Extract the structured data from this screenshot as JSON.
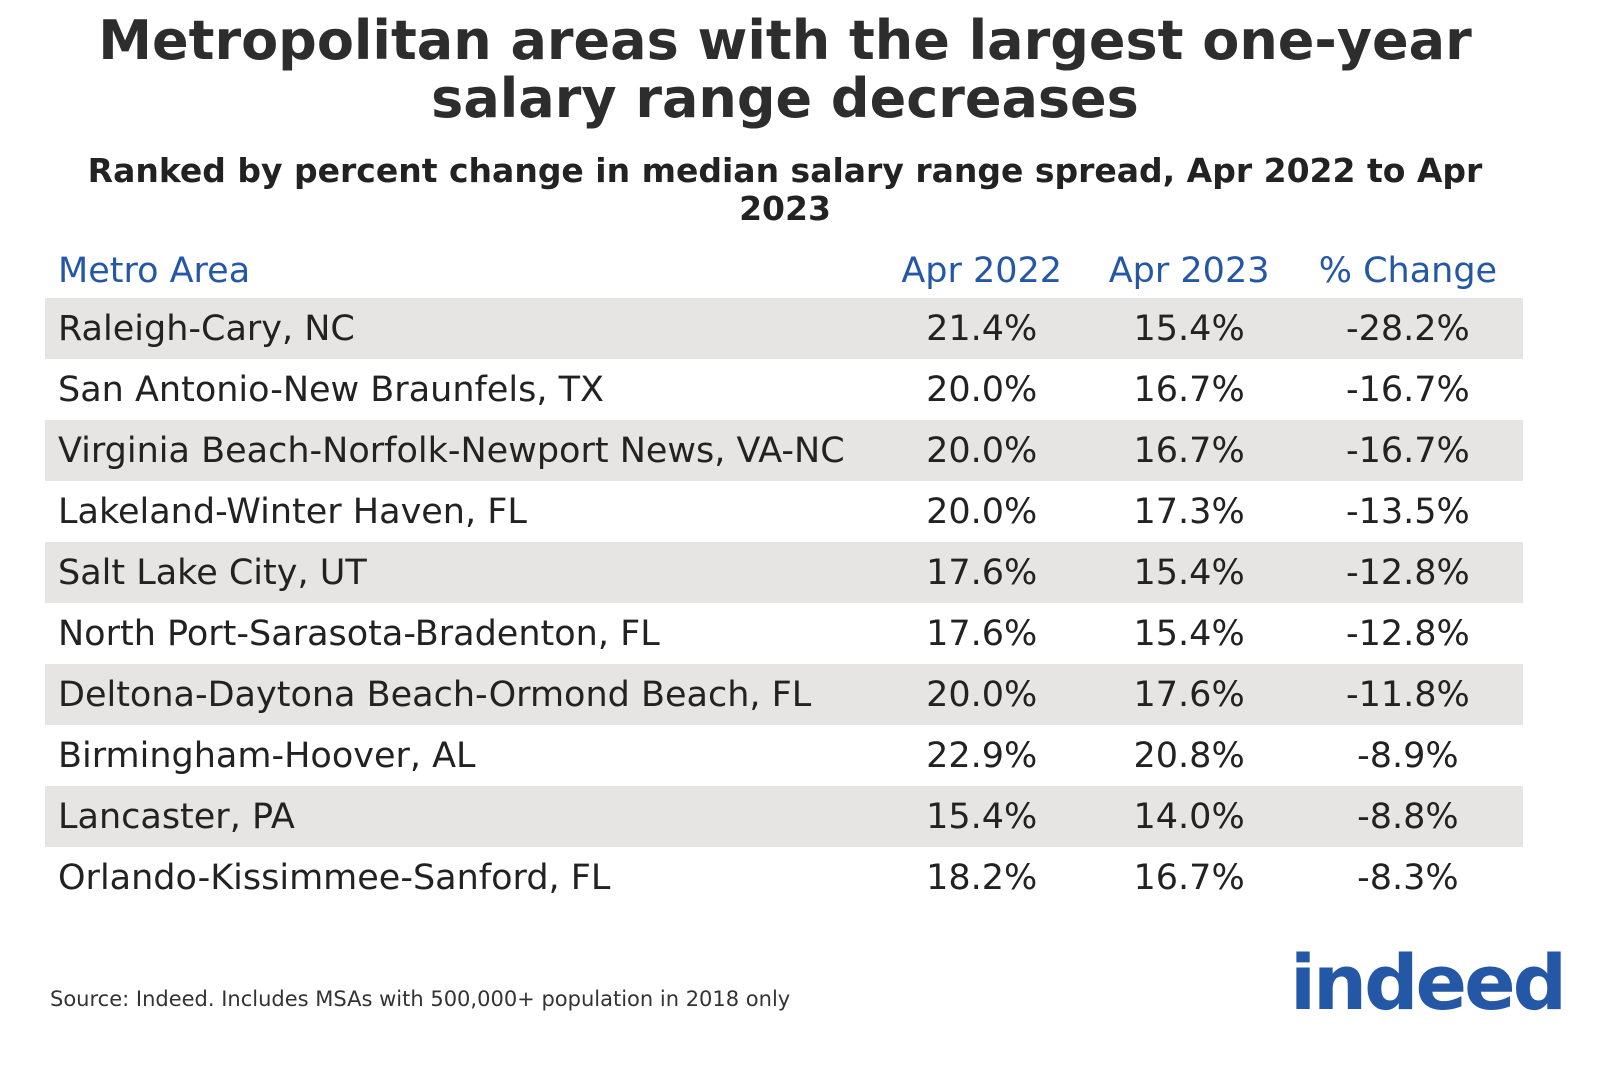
{
  "header": {
    "title": "Metropolitan areas with the largest one-year salary range decreases",
    "subtitle": "Ranked by percent change in median salary range spread, Apr 2022 to Apr 2023"
  },
  "table": {
    "columns": [
      "Metro Area",
      "Apr 2022",
      "Apr 2023",
      "% Change"
    ],
    "rows": [
      [
        "Raleigh-Cary, NC",
        "21.4%",
        "15.4%",
        "-28.2%"
      ],
      [
        "San Antonio-New Braunfels, TX",
        "20.0%",
        "16.7%",
        "-16.7%"
      ],
      [
        "Virginia Beach-Norfolk-Newport News, VA-NC",
        "20.0%",
        "16.7%",
        "-16.7%"
      ],
      [
        "Lakeland-Winter Haven, FL",
        "20.0%",
        "17.3%",
        "-13.5%"
      ],
      [
        "Salt Lake City, UT",
        "17.6%",
        "15.4%",
        "-12.8%"
      ],
      [
        "North Port-Sarasota-Bradenton, FL",
        "17.6%",
        "15.4%",
        "-12.8%"
      ],
      [
        "Deltona-Daytona Beach-Ormond Beach, FL",
        "20.0%",
        "17.6%",
        "-11.8%"
      ],
      [
        "Birmingham-Hoover, AL",
        "22.9%",
        "20.8%",
        "-8.9%"
      ],
      [
        "Lancaster, PA",
        "15.4%",
        "14.0%",
        "-8.8%"
      ],
      [
        "Orlando-Kissimmee-Sanford, FL",
        "18.2%",
        "16.7%",
        "-8.3%"
      ]
    ]
  },
  "footer": {
    "source": "Source: Indeed. Includes MSAs with 500,000+ population in 2018 only",
    "logo": "indeed"
  }
}
